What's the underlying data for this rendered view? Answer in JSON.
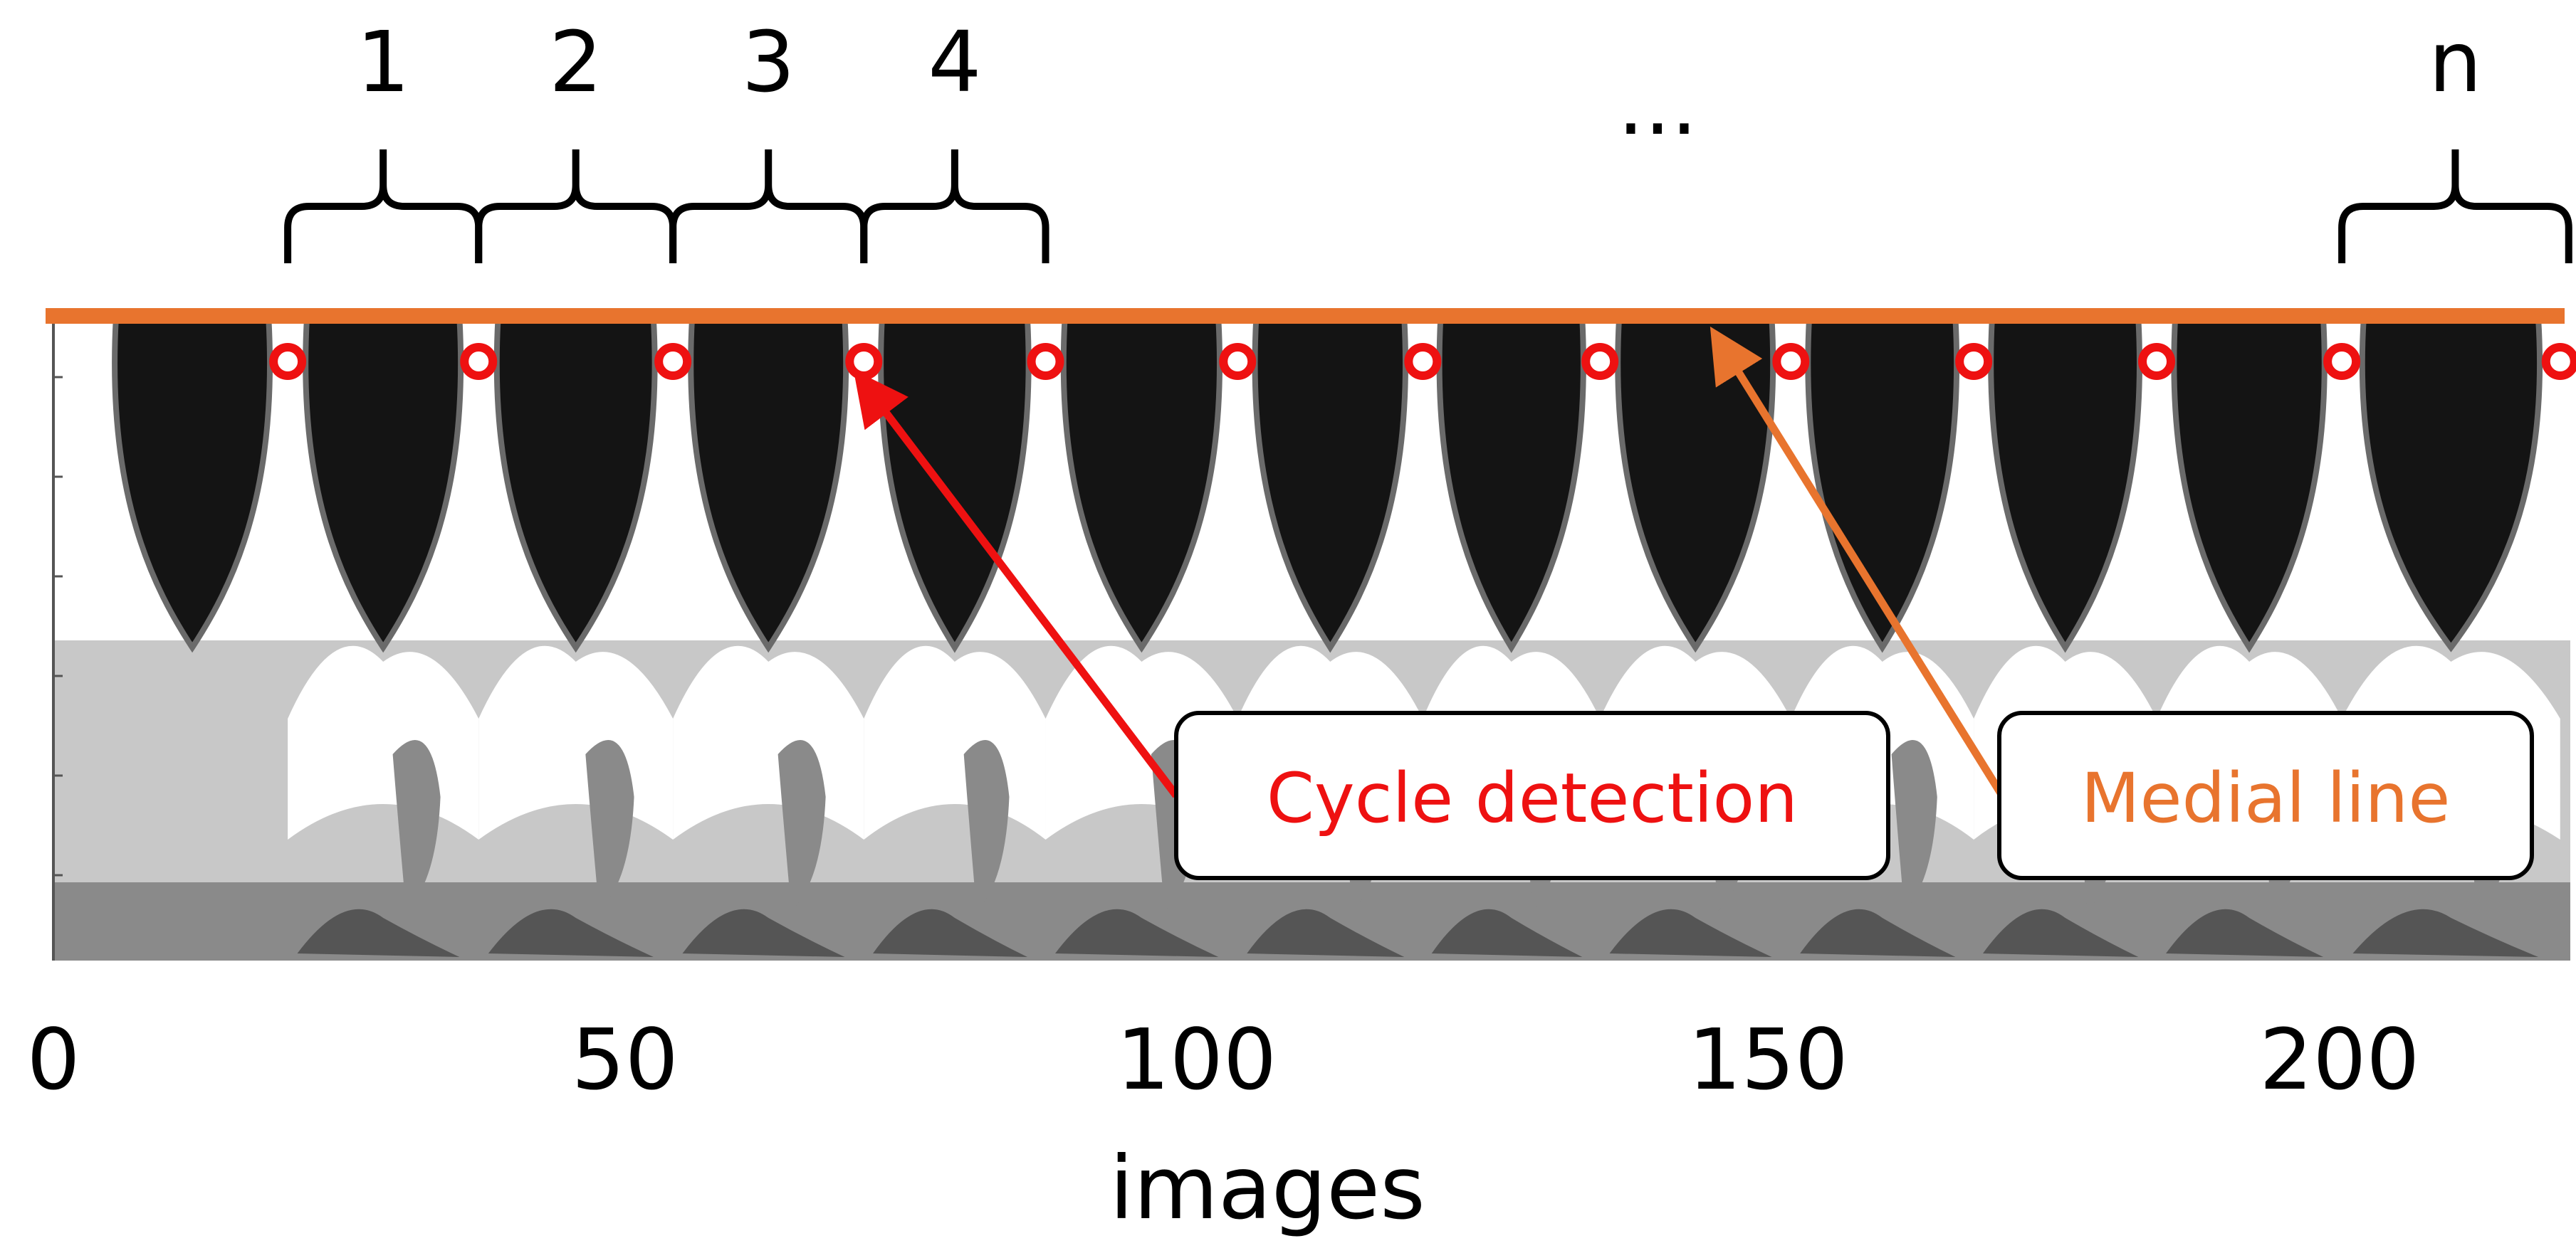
{
  "cycle_labels": [
    "1",
    "2",
    "3",
    "4"
  ],
  "ellipsis": "...",
  "last_cycle_label": "n",
  "x_ticks": [
    {
      "value": 0,
      "label": "0"
    },
    {
      "value": 50,
      "label": "50"
    },
    {
      "value": 100,
      "label": "100"
    },
    {
      "value": 150,
      "label": "150"
    },
    {
      "value": 200,
      "label": "200"
    }
  ],
  "x_range": [
    0,
    220
  ],
  "x_axis_label": "images",
  "cycle_detections": [
    20.5,
    37.2,
    54.2,
    70.9,
    86.8,
    103.6,
    119.8,
    135.3,
    152.0,
    168.0,
    184.0,
    200.2,
    219.3
  ],
  "callouts": {
    "cycle_detection": "Cycle detection",
    "medial_line": "Medial line"
  },
  "colors": {
    "cycle_detection": "#ee1111",
    "medial_line": "#e8742e",
    "dark_band": "#141414",
    "mid_gray": "#8a8a8a",
    "light_gray": "#c8c8c8",
    "dark_gray": "#555555"
  }
}
